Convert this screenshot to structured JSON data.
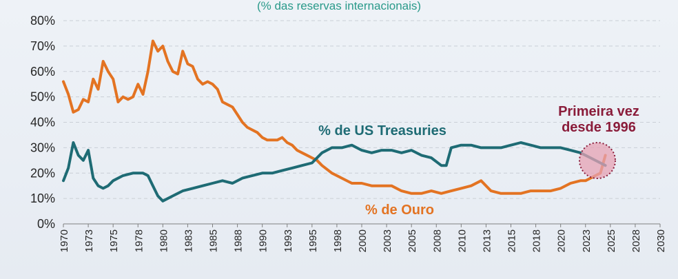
{
  "chart_data": {
    "type": "line",
    "title": "(% das reservas internacionais)",
    "xlabel": "",
    "ylabel": "",
    "xlim": [
      1970,
      2030
    ],
    "ylim": [
      0,
      80
    ],
    "grid": true,
    "y_ticks": [
      "0%",
      "10%",
      "20%",
      "30%",
      "40%",
      "50%",
      "60%",
      "70%",
      "80%"
    ],
    "y_tick_values": [
      0,
      10,
      20,
      30,
      40,
      50,
      60,
      70,
      80
    ],
    "x_ticks": [
      "1970",
      "1973",
      "1975",
      "1978",
      "1980",
      "1983",
      "1985",
      "1988",
      "1990",
      "1993",
      "1995",
      "1998",
      "2000",
      "2003",
      "2005",
      "2008",
      "2010",
      "2013",
      "2015",
      "2018",
      "2020",
      "2023",
      "2025",
      "2028",
      "2030"
    ],
    "x_tick_values": [
      1970,
      1972.5,
      1975,
      1977.5,
      1980,
      1982.5,
      1985,
      1987.5,
      1990,
      1992.5,
      1995,
      1997.5,
      2000,
      2002.5,
      2005,
      2007.5,
      2010,
      2012.5,
      2015,
      2017.5,
      2020,
      2022.5,
      2025,
      2027.5,
      2030
    ],
    "series": [
      {
        "name": "% de Ouro",
        "color": "#e37322",
        "x": [
          1970.0,
          1970.5,
          1971.0,
          1971.5,
          1972.0,
          1972.5,
          1973.0,
          1973.5,
          1974.0,
          1974.5,
          1975.0,
          1975.5,
          1976.0,
          1976.5,
          1977.0,
          1977.5,
          1978.0,
          1978.5,
          1979.0,
          1979.5,
          1980.0,
          1980.5,
          1981.0,
          1981.5,
          1982.0,
          1982.5,
          1983.0,
          1983.5,
          1984.0,
          1984.5,
          1985.0,
          1985.5,
          1986.0,
          1986.5,
          1987.0,
          1987.5,
          1988.0,
          1988.5,
          1989.0,
          1989.5,
          1990.0,
          1990.5,
          1991.0,
          1991.5,
          1992.0,
          1992.5,
          1993.0,
          1993.5,
          1994.0,
          1994.5,
          1995.0,
          1995.5,
          1996.0,
          1997.0,
          1998.0,
          1999.0,
          2000.0,
          2001.0,
          2002.0,
          2003.0,
          2004.0,
          2005.0,
          2006.0,
          2007.0,
          2008.0,
          2009.0,
          2010.0,
          2011.0,
          2012.0,
          2013.0,
          2014.0,
          2015.0,
          2016.0,
          2017.0,
          2018.0,
          2019.0,
          2020.0,
          2021.0,
          2022.0,
          2022.5,
          2023.0,
          2023.5,
          2024.0,
          2024.5
        ],
        "values": [
          56,
          51,
          44,
          45,
          49,
          48,
          57,
          53,
          64,
          60,
          57,
          48,
          50,
          49,
          50,
          55,
          51,
          60,
          72,
          68,
          70,
          64,
          60,
          59,
          68,
          63,
          62,
          57,
          55,
          56,
          55,
          53,
          48,
          47,
          46,
          43,
          40,
          38,
          37,
          36,
          34,
          33,
          33,
          33,
          34,
          32,
          31,
          29,
          28,
          27,
          26,
          25,
          23,
          20,
          18,
          16,
          16,
          15,
          15,
          15,
          13,
          12,
          12,
          13,
          12,
          13,
          14,
          15,
          17,
          13,
          12,
          12,
          12,
          13,
          13,
          13,
          14,
          16,
          17,
          17,
          18,
          19,
          20,
          27
        ]
      },
      {
        "name": "% de US Treasuries",
        "color": "#1e6b74",
        "x": [
          1970.0,
          1970.5,
          1971.0,
          1971.5,
          1972.0,
          1972.5,
          1973.0,
          1973.5,
          1974.0,
          1974.5,
          1975.0,
          1976.0,
          1977.0,
          1978.0,
          1978.5,
          1979.0,
          1979.5,
          1980.0,
          1981.0,
          1982.0,
          1983.0,
          1984.0,
          1985.0,
          1986.0,
          1987.0,
          1988.0,
          1989.0,
          1990.0,
          1991.0,
          1992.0,
          1993.0,
          1994.0,
          1995.0,
          1996.0,
          1997.0,
          1998.0,
          1999.0,
          2000.0,
          2001.0,
          2002.0,
          2003.0,
          2004.0,
          2005.0,
          2006.0,
          2007.0,
          2008.0,
          2008.5,
          2009.0,
          2010.0,
          2011.0,
          2012.0,
          2013.0,
          2014.0,
          2015.0,
          2016.0,
          2017.0,
          2018.0,
          2019.0,
          2020.0,
          2021.0,
          2022.0,
          2023.0,
          2024.0,
          2024.5
        ],
        "values": [
          17,
          22,
          32,
          27,
          25,
          29,
          18,
          15,
          14,
          15,
          17,
          19,
          20,
          20,
          19,
          15,
          11,
          9,
          11,
          13,
          14,
          15,
          16,
          17,
          16,
          18,
          19,
          20,
          20,
          21,
          22,
          23,
          24,
          28,
          30,
          30,
          31,
          29,
          28,
          29,
          29,
          28,
          29,
          27,
          26,
          23,
          23,
          30,
          31,
          31,
          30,
          30,
          30,
          31,
          32,
          31,
          30,
          30,
          30,
          29,
          28,
          26,
          24,
          23
        ]
      }
    ],
    "annotations": {
      "treasuries_label": "% de US Treasuries",
      "gold_label": "% de Ouro",
      "highlight_line1": "Primeira vez",
      "highlight_line2": "desde 1996"
    },
    "colors": {
      "gold": "#e37322",
      "treasuries": "#1e6b74",
      "highlight": "#8a1c3a",
      "highlight_fill": "#e6a1b4"
    }
  }
}
